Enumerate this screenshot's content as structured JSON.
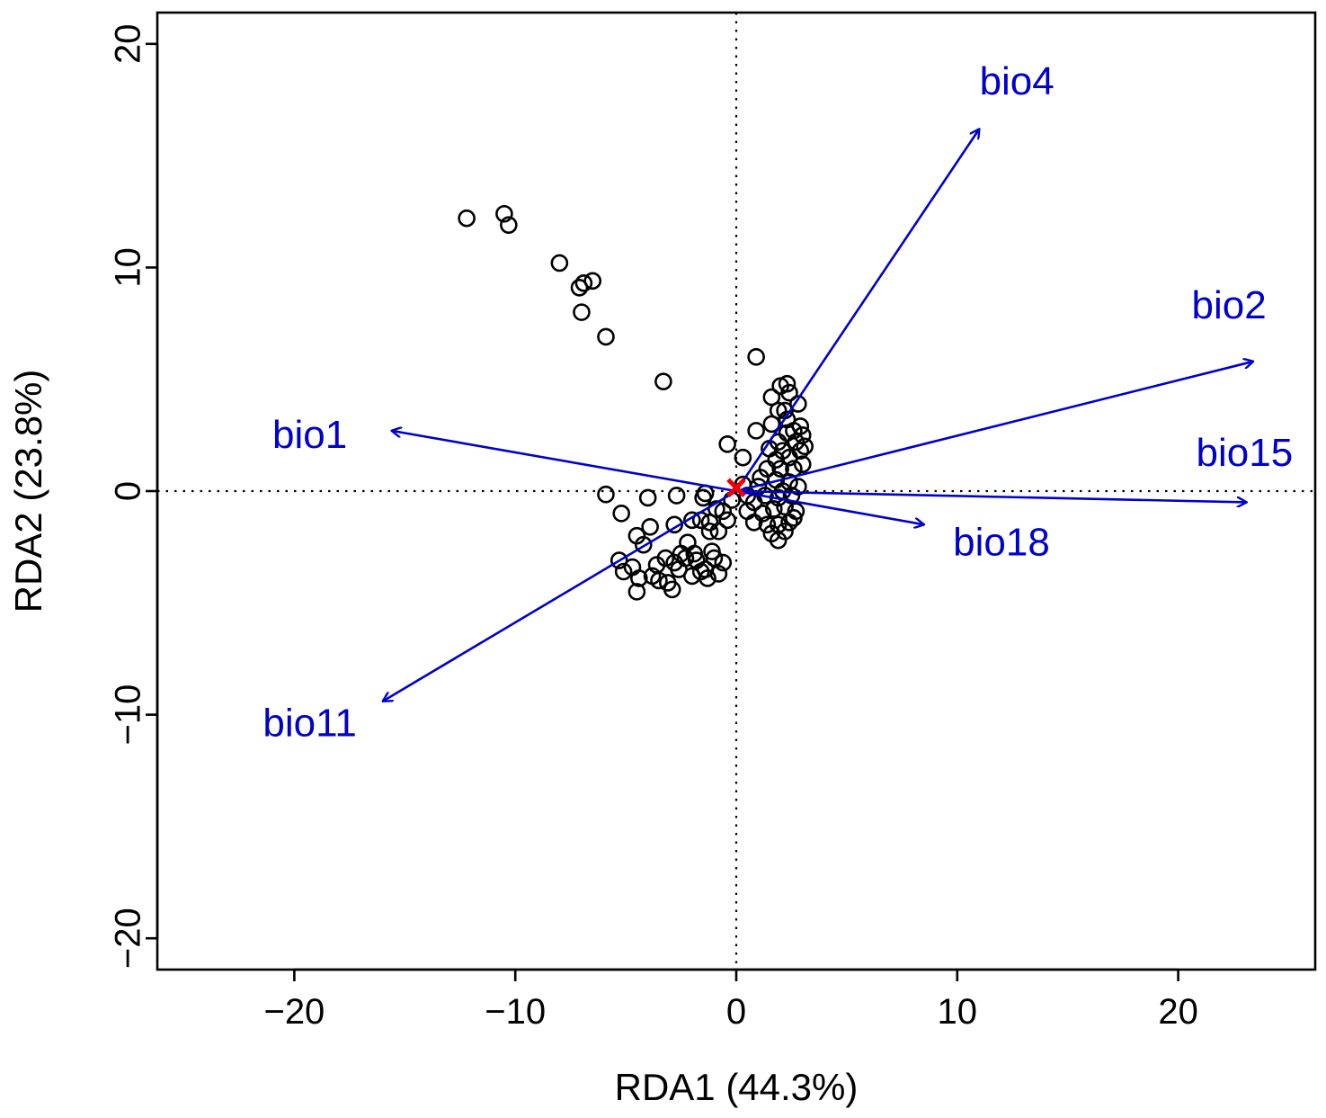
{
  "chart_data": {
    "type": "scatter",
    "subtype": "rda-biplot",
    "title": "",
    "xlabel": "RDA1 (44.3%)",
    "ylabel": "RDA2 (23.8%)",
    "xlim": [
      -26.2,
      26.2
    ],
    "ylim": [
      -21.4,
      21.4
    ],
    "xticks": [
      -20,
      -10,
      0,
      10,
      20
    ],
    "yticks": [
      -20,
      10,
      0,
      -10,
      20
    ],
    "xtick_labels": [
      "−20",
      "−10",
      "0",
      "10",
      "20"
    ],
    "ytick_labels": [
      "−20",
      "10",
      "0",
      "−10",
      "20"
    ],
    "reference_lines": {
      "x": 0,
      "y": 0,
      "style": "dotted"
    },
    "colors": {
      "arrows": "#0000cc",
      "points": "#000000",
      "centroid": "#ee0000",
      "reference": "#000000"
    },
    "centroid": [
      0,
      0.15
    ],
    "arrows": [
      {
        "name": "bio4",
        "x": 11.0,
        "y": 16.2,
        "label_x": 12.7,
        "label_y": 18.2
      },
      {
        "name": "bio2",
        "x": 23.4,
        "y": 5.8,
        "label_x": 22.3,
        "label_y": 8.2
      },
      {
        "name": "bio1",
        "x": -15.6,
        "y": 2.7,
        "label_x": -19.3,
        "label_y": 2.4
      },
      {
        "name": "bio15",
        "x": 23.1,
        "y": -0.5,
        "label_x": 23.0,
        "label_y": 1.6
      },
      {
        "name": "bio18",
        "x": 8.5,
        "y": -1.5,
        "label_x": 12.0,
        "label_y": -2.4
      },
      {
        "name": "bio11",
        "x": -16.0,
        "y": -9.4,
        "label_x": -19.3,
        "label_y": -10.5
      }
    ],
    "points": [
      [
        -12.2,
        12.2
      ],
      [
        -10.5,
        12.4
      ],
      [
        -10.3,
        11.9
      ],
      [
        -8.0,
        10.2
      ],
      [
        -6.9,
        9.3
      ],
      [
        -6.5,
        9.4
      ],
      [
        -7.1,
        9.1
      ],
      [
        -7.0,
        8.0
      ],
      [
        -5.9,
        6.9
      ],
      [
        -3.3,
        4.9
      ],
      [
        0.9,
        6.0
      ],
      [
        -5.9,
        -0.15
      ],
      [
        -4.0,
        -0.3
      ],
      [
        -2.7,
        -0.2
      ],
      [
        -1.4,
        -0.1
      ],
      [
        -1.5,
        -0.3
      ],
      [
        -5.2,
        -1.0
      ],
      [
        -3.9,
        -1.6
      ],
      [
        -2.8,
        -1.5
      ],
      [
        -2.0,
        -1.3
      ],
      [
        -1.6,
        -1.3
      ],
      [
        -1.2,
        -1.8
      ],
      [
        -0.8,
        -1.8
      ],
      [
        -0.6,
        -0.9
      ],
      [
        -0.2,
        -0.4
      ],
      [
        -1.2,
        -1.4
      ],
      [
        -0.4,
        -1.3
      ],
      [
        -0.9,
        -0.8
      ],
      [
        -4.5,
        -2.0
      ],
      [
        -4.2,
        -2.4
      ],
      [
        -5.3,
        -3.1
      ],
      [
        -5.1,
        -3.6
      ],
      [
        -4.7,
        -3.4
      ],
      [
        -4.4,
        -3.9
      ],
      [
        -4.5,
        -4.5
      ],
      [
        -3.6,
        -3.3
      ],
      [
        -3.2,
        -3.0
      ],
      [
        -3.5,
        -4.0
      ],
      [
        -3.1,
        -4.1
      ],
      [
        -2.9,
        -4.4
      ],
      [
        -2.6,
        -3.5
      ],
      [
        -2.3,
        -3.0
      ],
      [
        -2.2,
        -2.3
      ],
      [
        -1.9,
        -2.8
      ],
      [
        -1.6,
        -3.6
      ],
      [
        -1.3,
        -3.9
      ],
      [
        -0.8,
        -3.7
      ],
      [
        -0.6,
        -3.2
      ],
      [
        -2.5,
        -2.8
      ],
      [
        -1.8,
        -3.1
      ],
      [
        -1.0,
        -3.0
      ],
      [
        -2.0,
        -3.8
      ],
      [
        -3.8,
        -3.8
      ],
      [
        -2.8,
        -3.2
      ],
      [
        -1.4,
        -3.5
      ],
      [
        -1.1,
        -2.7
      ],
      [
        -0.4,
        2.1
      ],
      [
        0.3,
        1.5
      ],
      [
        0.9,
        2.7
      ],
      [
        1.6,
        4.2
      ],
      [
        2.0,
        4.7
      ],
      [
        2.3,
        4.8
      ],
      [
        2.4,
        4.4
      ],
      [
        2.8,
        3.9
      ],
      [
        1.9,
        3.6
      ],
      [
        1.6,
        3.0
      ],
      [
        2.3,
        3.2
      ],
      [
        2.6,
        2.7
      ],
      [
        2.9,
        2.9
      ],
      [
        3.0,
        2.5
      ],
      [
        2.7,
        2.2
      ],
      [
        2.3,
        2.6
      ],
      [
        1.9,
        2.2
      ],
      [
        2.1,
        1.8
      ],
      [
        1.5,
        1.9
      ],
      [
        1.8,
        1.4
      ],
      [
        2.4,
        1.5
      ],
      [
        2.9,
        1.8
      ],
      [
        3.0,
        1.2
      ],
      [
        2.6,
        1.0
      ],
      [
        2.0,
        1.0
      ],
      [
        1.4,
        1.0
      ],
      [
        1.1,
        0.6
      ],
      [
        1.8,
        0.5
      ],
      [
        2.4,
        0.4
      ],
      [
        2.8,
        0.2
      ],
      [
        2.5,
        -0.2
      ],
      [
        1.9,
        -0.3
      ],
      [
        1.3,
        -0.2
      ],
      [
        0.8,
        -0.5
      ],
      [
        0.5,
        -0.9
      ],
      [
        1.2,
        -1.0
      ],
      [
        1.7,
        -0.8
      ],
      [
        2.2,
        -0.7
      ],
      [
        2.7,
        -0.9
      ],
      [
        2.4,
        -1.4
      ],
      [
        1.9,
        -1.5
      ],
      [
        1.4,
        -1.5
      ],
      [
        0.8,
        -1.4
      ],
      [
        1.6,
        -1.9
      ],
      [
        2.2,
        -1.8
      ],
      [
        1.9,
        -2.2
      ],
      [
        2.6,
        -1.2
      ],
      [
        2.1,
        0.0
      ],
      [
        0.3,
        0.3
      ],
      [
        0.5,
        -0.2
      ],
      [
        1.0,
        0.2
      ],
      [
        2.2,
        3.6
      ],
      [
        3.1,
        2.0
      ]
    ]
  }
}
